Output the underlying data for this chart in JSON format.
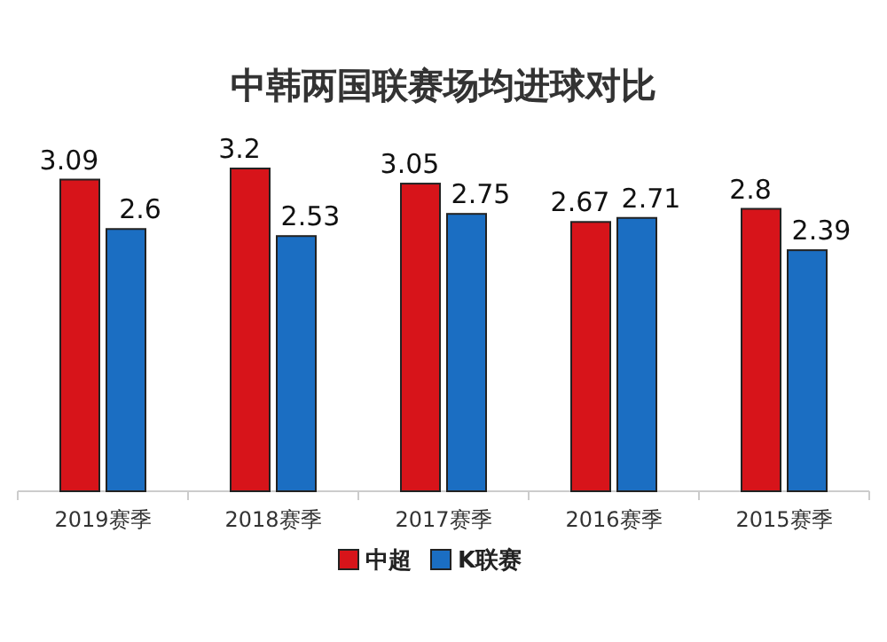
{
  "chart_data": {
    "type": "bar",
    "title": "中韩两国联赛场均进球对比",
    "categories": [
      "2019赛季",
      "2018赛季",
      "2017赛季",
      "2016赛季",
      "2015赛季"
    ],
    "series": [
      {
        "name": "中超",
        "color": "#d7141a",
        "values": [
          3.09,
          3.2,
          3.05,
          2.67,
          2.8
        ]
      },
      {
        "name": "K联赛",
        "color": "#1b6ec2",
        "values": [
          2.6,
          2.53,
          2.75,
          2.71,
          2.39
        ]
      }
    ],
    "data_labels": true,
    "legend": "bottom"
  }
}
